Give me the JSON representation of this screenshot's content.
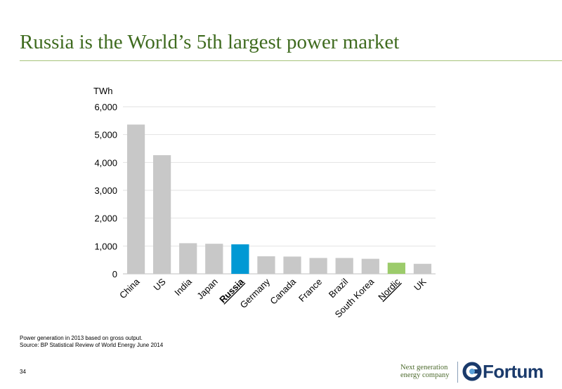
{
  "page": {
    "title": "Russia is the World’s 5th largest power market",
    "notes": [
      "Power generation in 2013 based on gross output.",
      "Source: BP Statistical Review of World Energy June 2014"
    ],
    "page_number": "34",
    "tagline": [
      "Next generation",
      "energy company"
    ],
    "logo_text": "Fortum"
  },
  "chart_data": {
    "type": "bar",
    "ylabel": "TWh",
    "ylim": [
      0,
      6000
    ],
    "yticks": [
      0,
      1000,
      2000,
      3000,
      4000,
      5000,
      6000
    ],
    "ytick_labels": [
      "0",
      "1,000",
      "2,000",
      "3,000",
      "4,000",
      "5,000",
      "6,000"
    ],
    "grid": true,
    "categories": [
      "China",
      "US",
      "India",
      "Japan",
      "Russia",
      "Germany",
      "Canada",
      "France",
      "Brazil",
      "South Korea",
      "Nordic",
      "UK"
    ],
    "values": [
      5360,
      4260,
      1100,
      1080,
      1060,
      630,
      620,
      570,
      570,
      540,
      400,
      360
    ],
    "colors": [
      "#c8c8c8",
      "#c8c8c8",
      "#c8c8c8",
      "#c8c8c8",
      "#0099d4",
      "#c8c8c8",
      "#c8c8c8",
      "#c8c8c8",
      "#c8c8c8",
      "#c8c8c8",
      "#9ccb6b",
      "#c8c8c8"
    ],
    "emphasized_categories": [
      "Russia",
      "Nordic"
    ]
  }
}
